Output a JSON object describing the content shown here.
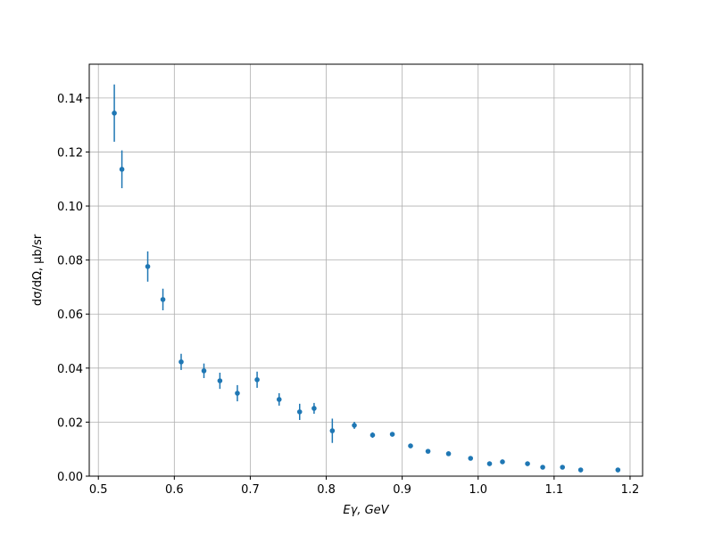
{
  "chart_data": {
    "type": "errorbar",
    "x_label": "Eγ, GeV",
    "y_label": "dσ/dΩ, μb/sr",
    "color": "#1f77b4",
    "grid": true,
    "xlim": [
      0.488,
      1.2165
    ],
    "ylim": [
      0,
      0.1525
    ],
    "xticks": [
      0.5,
      0.6,
      0.7,
      0.8,
      0.9,
      {
        "value": 1,
        "label": "1.0"
      },
      1.1,
      1.2
    ],
    "yticks": [
      {
        "value": 0,
        "label": "0.00"
      },
      {
        "value": 0.02,
        "label": "0.02"
      },
      {
        "value": 0.04,
        "label": "0.04"
      },
      {
        "value": 0.06,
        "label": "0.06"
      },
      {
        "value": 0.08,
        "label": "0.08"
      },
      {
        "value": 0.1,
        "label": "0.10"
      },
      {
        "value": 0.12,
        "label": "0.12"
      },
      {
        "value": 0.14,
        "label": "0.14"
      }
    ],
    "x": [
      0.521,
      0.531,
      0.565,
      0.585,
      0.609,
      0.639,
      0.66,
      0.683,
      0.709,
      0.738,
      0.765,
      0.784,
      0.808,
      0.837,
      0.861,
      0.887,
      0.911,
      0.934,
      0.961,
      0.99,
      1.015,
      1.032,
      1.065,
      1.085,
      1.111,
      1.135,
      1.184
    ],
    "values": [
      0.1344,
      0.1136,
      0.0776,
      0.0654,
      0.0423,
      0.039,
      0.0353,
      0.0307,
      0.0357,
      0.0284,
      0.0238,
      0.0251,
      0.0168,
      0.0188,
      0.0152,
      0.0155,
      0.0112,
      0.0092,
      0.0083,
      0.0066,
      0.0046,
      0.0053,
      0.0046,
      0.0033,
      0.0033,
      0.0023,
      0.0023
    ],
    "errors": [
      0.0106,
      0.007,
      0.0056,
      0.004,
      0.003,
      0.0027,
      0.003,
      0.003,
      0.003,
      0.0023,
      0.003,
      0.002,
      0.0045,
      0.0013,
      0.001,
      0.0008,
      0.0007,
      0.0006,
      0.0005,
      0.0006,
      0.0004,
      0.0006,
      0.0003,
      0.0003,
      0.0003,
      0.0002,
      0.0002
    ]
  }
}
